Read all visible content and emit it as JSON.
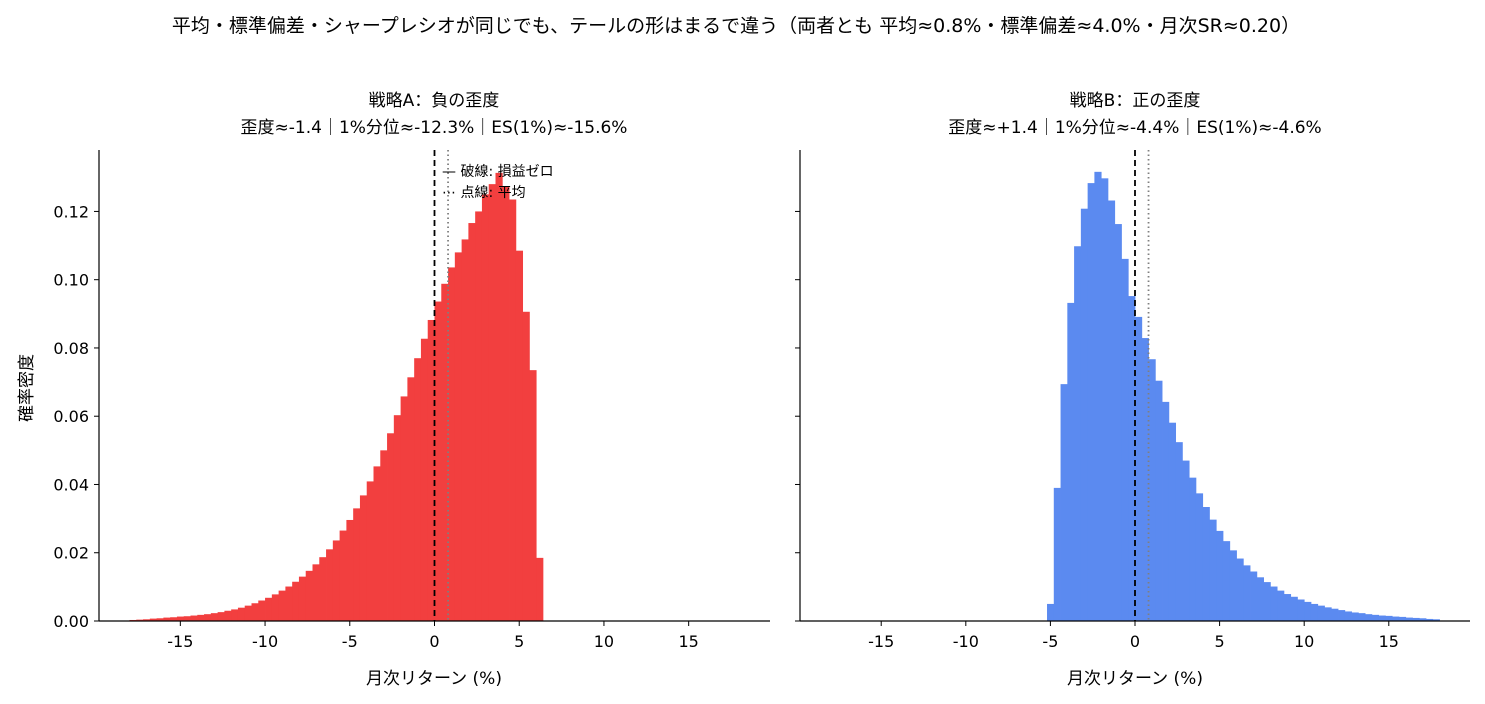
{
  "figure": {
    "suptitle": "平均・標準偏差・シャープレシオが同じでも、テールの形はまるで違う（両者とも 平均≈0.8%・標準偏差≈4.0%・月次SR≈0.20）"
  },
  "chart_data": [
    {
      "type": "histogram",
      "title": "戦略A：負の歪度",
      "subtitle": "歪度≈-1.4｜1%分位≈-12.3%｜ES(1%)≈-15.6%",
      "xlabel": "月次リターン (%)",
      "ylabel": "確率密度",
      "xlim": [
        -19.8,
        19.8
      ],
      "ylim": [
        0,
        0.138
      ],
      "xticks": [
        -15,
        -10,
        -5,
        0,
        5,
        10,
        15
      ],
      "xtick_labels": [
        "-15",
        "-10",
        "-5",
        "0",
        "5",
        "10",
        "15"
      ],
      "yticks": [
        0.0,
        0.02,
        0.04,
        0.06,
        0.08,
        0.1,
        0.12
      ],
      "ytick_labels": [
        "0.00",
        "0.02",
        "0.04",
        "0.06",
        "0.08",
        "0.10",
        "0.12"
      ],
      "bin_width": 0.4,
      "bin_left_edges": [
        -18.0,
        -17.6,
        -17.2,
        -16.8,
        -16.4,
        -16.0,
        -15.6,
        -15.2,
        -14.8,
        -14.4,
        -14.0,
        -13.6,
        -13.2,
        -12.8,
        -12.4,
        -12.0,
        -11.6,
        -11.2,
        -10.8,
        -10.4,
        -10.0,
        -9.6,
        -9.2,
        -8.8,
        -8.4,
        -8.0,
        -7.6,
        -7.2,
        -6.8,
        -6.4,
        -6.0,
        -5.6,
        -5.2,
        -4.8,
        -4.4,
        -4.0,
        -3.6,
        -3.2,
        -2.8,
        -2.4,
        -2.0,
        -1.6,
        -1.2,
        -0.8,
        -0.4,
        0.0,
        0.4,
        0.8,
        1.2,
        1.6,
        2.0,
        2.4,
        2.8,
        3.2,
        3.6,
        4.0,
        4.4,
        4.8,
        5.2,
        5.6,
        6.0
      ],
      "values": [
        0.0003,
        0.0004,
        0.0005,
        0.0007,
        0.0008,
        0.001,
        0.0011,
        0.0013,
        0.0014,
        0.0016,
        0.0018,
        0.002,
        0.0023,
        0.0026,
        0.003,
        0.0034,
        0.0039,
        0.0045,
        0.0052,
        0.006,
        0.0068,
        0.0078,
        0.0089,
        0.0101,
        0.0115,
        0.013,
        0.0147,
        0.0166,
        0.0187,
        0.021,
        0.0236,
        0.0265,
        0.0296,
        0.033,
        0.0368,
        0.0409,
        0.0453,
        0.05,
        0.055,
        0.0603,
        0.0658,
        0.0714,
        0.077,
        0.0827,
        0.0882,
        0.0936,
        0.0988,
        0.1036,
        0.108,
        0.1118,
        0.1166,
        0.12,
        0.125,
        0.128,
        0.1313,
        0.1272,
        0.1235,
        0.1085,
        0.0906,
        0.0735,
        0.0185
      ],
      "color": "#f23f3f",
      "zero_line": 0,
      "mean_line": 0.8,
      "legend": [
        "— 破線: 損益ゼロ",
        "⋯ 点線: 平均"
      ]
    },
    {
      "type": "histogram",
      "title": "戦略B：正の歪度",
      "subtitle": "歪度≈+1.4｜1%分位≈-4.4%｜ES(1%)≈-4.6%",
      "xlabel": "月次リターン (%)",
      "xlim": [
        -19.8,
        19.8
      ],
      "ylim": [
        0,
        0.138
      ],
      "xticks": [
        -15,
        -10,
        -5,
        0,
        5,
        10,
        15
      ],
      "xtick_labels": [
        "-15",
        "-10",
        "-5",
        "0",
        "5",
        "10",
        "15"
      ],
      "bin_width": 0.4,
      "bin_left_edges": [
        -5.2,
        -4.8,
        -4.4,
        -4.0,
        -3.6,
        -3.2,
        -2.8,
        -2.4,
        -2.0,
        -1.6,
        -1.2,
        -0.8,
        -0.4,
        0.0,
        0.4,
        0.8,
        1.2,
        1.6,
        2.0,
        2.4,
        2.8,
        3.2,
        3.6,
        4.0,
        4.4,
        4.8,
        5.2,
        5.6,
        6.0,
        6.4,
        6.8,
        7.2,
        7.6,
        8.0,
        8.4,
        8.8,
        9.2,
        9.6,
        10.0,
        10.4,
        10.8,
        11.2,
        11.6,
        12.0,
        12.4,
        12.8,
        13.2,
        13.6,
        14.0,
        14.4,
        14.8,
        15.2,
        15.6,
        16.0,
        16.4,
        16.8,
        17.2,
        17.6
      ],
      "values": [
        0.005,
        0.039,
        0.0694,
        0.0932,
        0.1098,
        0.1208,
        0.1283,
        0.1316,
        0.1297,
        0.1232,
        0.1163,
        0.1061,
        0.0952,
        0.0891,
        0.0829,
        0.0767,
        0.0704,
        0.0642,
        0.0581,
        0.0524,
        0.047,
        0.042,
        0.0374,
        0.0334,
        0.0297,
        0.0264,
        0.0234,
        0.0207,
        0.0183,
        0.0163,
        0.0145,
        0.0128,
        0.0114,
        0.0101,
        0.0089,
        0.0079,
        0.0071,
        0.0063,
        0.0056,
        0.005,
        0.0045,
        0.004,
        0.0036,
        0.0032,
        0.0028,
        0.0025,
        0.0023,
        0.002,
        0.0018,
        0.0016,
        0.0015,
        0.0013,
        0.0012,
        0.001,
        0.0009,
        0.0008,
        0.0006,
        0.0005
      ],
      "color": "#5b8af0",
      "zero_line": 0,
      "mean_line": 0.8
    }
  ]
}
